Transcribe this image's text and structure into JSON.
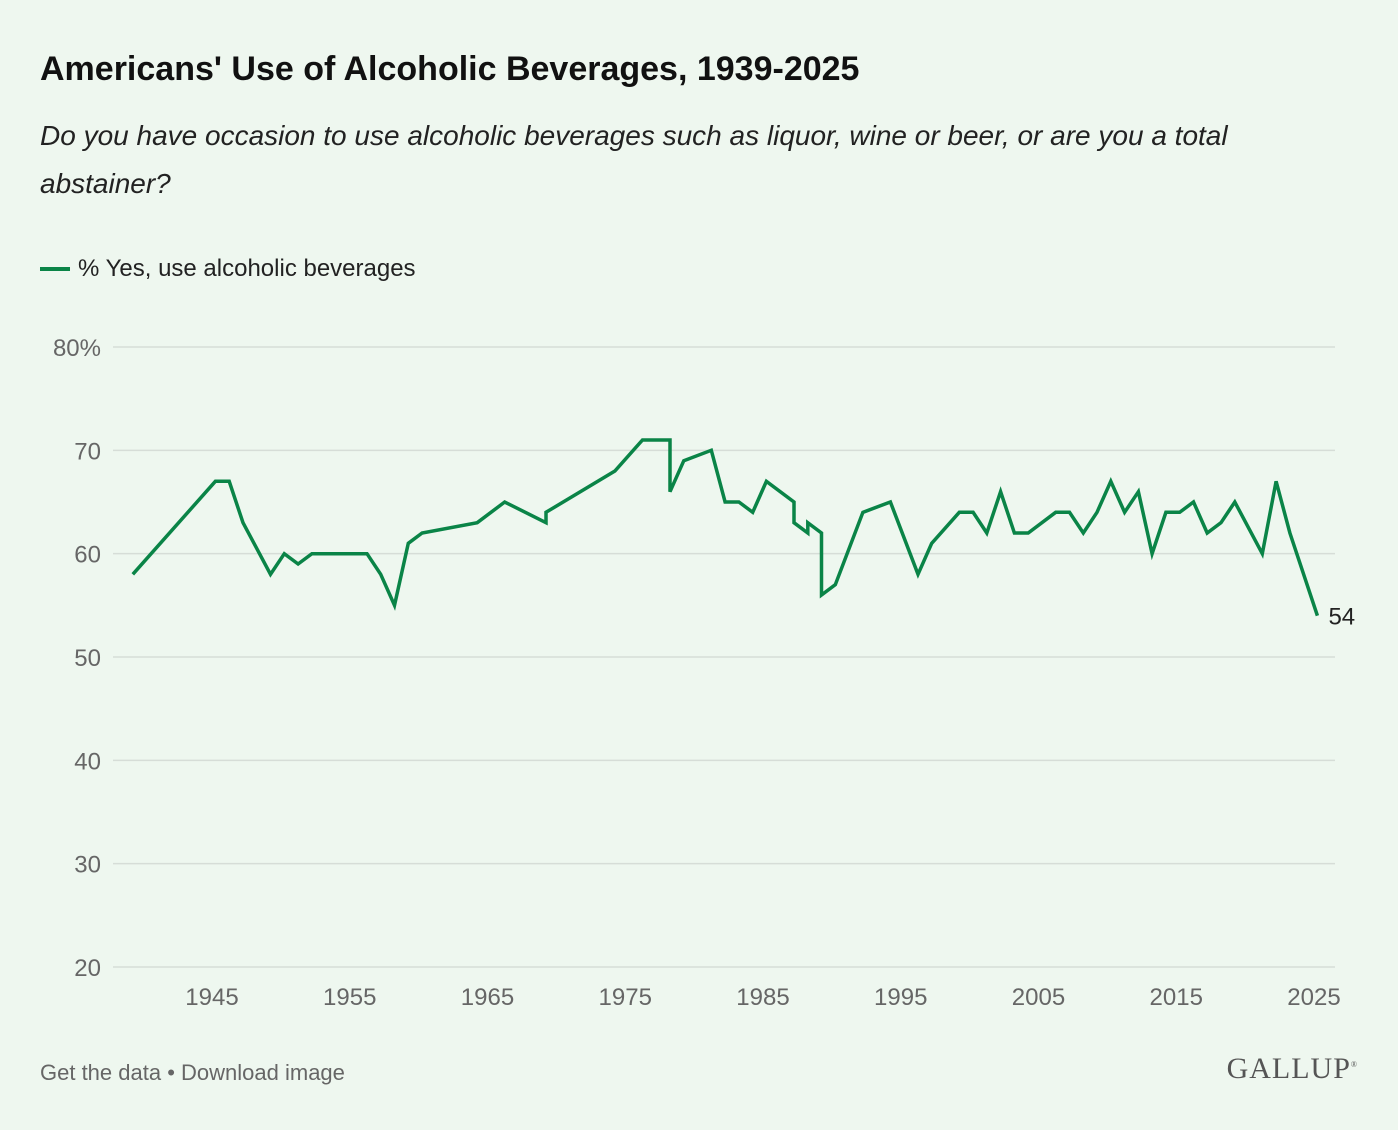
{
  "chart_data": {
    "type": "line",
    "title": "Americans' Use of Alcoholic Beverages, 1939-2025",
    "subtitle": "Do you have occasion to use alcoholic beverages such as liquor, wine or beer, or are you a total abstainer?",
    "xlabel": "",
    "ylabel": "",
    "xlim": [
      1939,
      2025
    ],
    "ylim": [
      20,
      80
    ],
    "x_ticks": [
      "1945",
      "1955",
      "1965",
      "1975",
      "1985",
      "1995",
      "2005",
      "2015",
      "2025"
    ],
    "y_ticks": [
      "80%",
      "70",
      "60",
      "50",
      "40",
      "30",
      "20"
    ],
    "grid": true,
    "legend_placement": "top-left",
    "series": [
      {
        "name": "% Yes, use alcoholic beverages",
        "color": "#0a8447",
        "end_label": "54",
        "points": [
          [
            1939,
            58
          ],
          [
            1945,
            67
          ],
          [
            1946,
            67
          ],
          [
            1947,
            63
          ],
          [
            1949,
            58
          ],
          [
            1950,
            60
          ],
          [
            1951,
            59
          ],
          [
            1952,
            60
          ],
          [
            1956,
            60
          ],
          [
            1957,
            58
          ],
          [
            1958,
            55
          ],
          [
            1959,
            61
          ],
          [
            1960,
            62
          ],
          [
            1964,
            63
          ],
          [
            1966,
            65
          ],
          [
            1969,
            63
          ],
          [
            1969,
            64
          ],
          [
            1974,
            68
          ],
          [
            1976,
            71
          ],
          [
            1978,
            71
          ],
          [
            1978,
            66
          ],
          [
            1979,
            69
          ],
          [
            1981,
            70
          ],
          [
            1982,
            65
          ],
          [
            1983,
            65
          ],
          [
            1984,
            64
          ],
          [
            1985,
            67
          ],
          [
            1987,
            65
          ],
          [
            1987,
            63
          ],
          [
            1988,
            62
          ],
          [
            1988,
            63
          ],
          [
            1989,
            62
          ],
          [
            1989,
            56
          ],
          [
            1990,
            57
          ],
          [
            1992,
            64
          ],
          [
            1994,
            65
          ],
          [
            1996,
            58
          ],
          [
            1997,
            61
          ],
          [
            1999,
            64
          ],
          [
            2000,
            64
          ],
          [
            2001,
            62
          ],
          [
            2002,
            66
          ],
          [
            2003,
            62
          ],
          [
            2004,
            62
          ],
          [
            2006,
            64
          ],
          [
            2007,
            64
          ],
          [
            2008,
            62
          ],
          [
            2009,
            64
          ],
          [
            2010,
            67
          ],
          [
            2011,
            64
          ],
          [
            2012,
            66
          ],
          [
            2013,
            60
          ],
          [
            2014,
            64
          ],
          [
            2015,
            64
          ],
          [
            2016,
            65
          ],
          [
            2017,
            62
          ],
          [
            2018,
            63
          ],
          [
            2019,
            65
          ],
          [
            2021,
            60
          ],
          [
            2022,
            67
          ],
          [
            2023,
            62
          ],
          [
            2025,
            54
          ]
        ]
      }
    ]
  },
  "footer": {
    "get_data": "Get the data",
    "separator": " • ",
    "download": "Download image",
    "logo": "GALLUP"
  }
}
